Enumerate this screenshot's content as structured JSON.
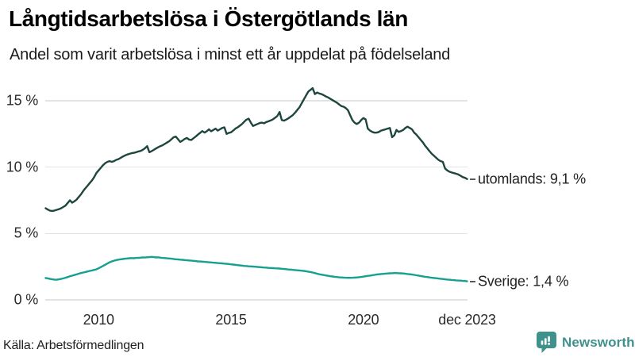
{
  "header": {
    "title": "Långtidsarbetslösa i Östergötlands län",
    "subtitle": "Andel som varit arbetslösa i minst ett år uppdelat på födelseland"
  },
  "footer": {
    "source": "Källa: Arbetsförmedlingen",
    "brand_name": "Newsworthy",
    "brand_color": "#3f918b"
  },
  "chart_data": {
    "type": "line",
    "x_unit": "month",
    "grid": "horizontal-only",
    "gridline_color": "#e2e4e3",
    "ylim": [
      0,
      16.3
    ],
    "y_ticks": [
      {
        "label": "0 %",
        "value": 0
      },
      {
        "label": "5 %",
        "value": 5
      },
      {
        "label": "10 %",
        "value": 10
      },
      {
        "label": "15 %",
        "value": 15
      }
    ],
    "x_ticks": [
      {
        "label": "2010",
        "month_index": 24
      },
      {
        "label": "2015",
        "month_index": 84
      },
      {
        "label": "2020",
        "month_index": 144
      },
      {
        "label": "dec 2023",
        "month_index": 191
      }
    ],
    "legend_position": "labels-at-line-end",
    "series": [
      {
        "name": "utomlands",
        "end_label": "utomlands: 9,1 %",
        "end_value_display": "9,1 %",
        "color": "#1e463e",
        "values": [
          6.9,
          6.8,
          6.72,
          6.7,
          6.73,
          6.78,
          6.83,
          6.9,
          7.0,
          7.1,
          7.3,
          7.5,
          7.32,
          7.42,
          7.55,
          7.75,
          7.95,
          8.2,
          8.4,
          8.6,
          8.8,
          9.0,
          9.25,
          9.55,
          9.75,
          9.95,
          10.15,
          10.3,
          10.4,
          10.45,
          10.4,
          10.45,
          10.55,
          10.6,
          10.7,
          10.8,
          10.88,
          10.95,
          11.0,
          11.05,
          11.08,
          11.12,
          11.18,
          11.22,
          11.3,
          11.42,
          11.58,
          11.12,
          11.2,
          11.3,
          11.4,
          11.5,
          11.58,
          11.65,
          11.75,
          11.85,
          11.95,
          12.1,
          12.25,
          12.3,
          12.1,
          11.9,
          12.0,
          12.12,
          12.2,
          12.08,
          12.05,
          12.18,
          12.3,
          12.45,
          12.58,
          12.72,
          12.6,
          12.7,
          12.85,
          12.7,
          12.8,
          12.9,
          12.75,
          12.85,
          12.95,
          13.0,
          12.5,
          12.58,
          12.62,
          12.75,
          12.9,
          13.0,
          13.12,
          13.25,
          13.42,
          13.58,
          13.65,
          13.35,
          13.1,
          13.18,
          13.25,
          13.32,
          13.35,
          13.3,
          13.4,
          13.45,
          13.52,
          13.6,
          13.72,
          13.85,
          14.15,
          13.55,
          13.5,
          13.58,
          13.68,
          13.8,
          13.92,
          14.1,
          14.3,
          14.5,
          14.8,
          15.1,
          15.4,
          15.68,
          15.82,
          15.95,
          15.5,
          15.62,
          15.55,
          15.5,
          15.42,
          15.32,
          15.25,
          15.15,
          15.05,
          14.95,
          14.85,
          14.72,
          14.6,
          14.55,
          14.45,
          14.28,
          13.9,
          13.55,
          13.35,
          13.25,
          13.35,
          13.55,
          13.7,
          13.6,
          12.9,
          12.75,
          12.65,
          12.6,
          12.6,
          12.65,
          12.75,
          12.8,
          12.85,
          12.9,
          12.95,
          12.25,
          12.4,
          12.8,
          12.65,
          12.72,
          12.8,
          12.95,
          13.05,
          12.95,
          12.85,
          12.6,
          12.45,
          12.25,
          12.05,
          11.85,
          11.6,
          11.4,
          11.2,
          11.0,
          10.85,
          10.7,
          10.55,
          10.45,
          10.4,
          9.9,
          9.75,
          9.65,
          9.6,
          9.55,
          9.5,
          9.45,
          9.35,
          9.25,
          9.2,
          9.1
        ]
      },
      {
        "name": "Sverige",
        "end_label": "Sverige: 1,4 %",
        "end_value_display": "1,4 %",
        "color": "#16a08f",
        "values": [
          1.65,
          1.62,
          1.58,
          1.55,
          1.53,
          1.52,
          1.55,
          1.58,
          1.62,
          1.67,
          1.72,
          1.78,
          1.82,
          1.87,
          1.92,
          1.97,
          2.02,
          2.06,
          2.1,
          2.14,
          2.18,
          2.22,
          2.26,
          2.3,
          2.38,
          2.47,
          2.56,
          2.65,
          2.74,
          2.83,
          2.9,
          2.95,
          3.0,
          3.03,
          3.06,
          3.08,
          3.1,
          3.12,
          3.14,
          3.15,
          3.14,
          3.16,
          3.17,
          3.18,
          3.2,
          3.19,
          3.21,
          3.22,
          3.24,
          3.22,
          3.2,
          3.21,
          3.18,
          3.16,
          3.15,
          3.13,
          3.12,
          3.1,
          3.08,
          3.06,
          3.05,
          3.03,
          3.02,
          3.0,
          2.98,
          2.97,
          2.95,
          2.94,
          2.92,
          2.9,
          2.89,
          2.88,
          2.86,
          2.85,
          2.83,
          2.82,
          2.8,
          2.79,
          2.77,
          2.76,
          2.75,
          2.73,
          2.72,
          2.7,
          2.68,
          2.66,
          2.64,
          2.62,
          2.6,
          2.58,
          2.56,
          2.55,
          2.53,
          2.52,
          2.51,
          2.5,
          2.48,
          2.47,
          2.45,
          2.44,
          2.43,
          2.41,
          2.4,
          2.39,
          2.38,
          2.37,
          2.36,
          2.34,
          2.33,
          2.31,
          2.29,
          2.28,
          2.26,
          2.25,
          2.23,
          2.22,
          2.2,
          2.18,
          2.16,
          2.13,
          2.1,
          2.06,
          2.02,
          1.97,
          1.93,
          1.9,
          1.87,
          1.84,
          1.81,
          1.78,
          1.76,
          1.74,
          1.72,
          1.7,
          1.69,
          1.68,
          1.67,
          1.66,
          1.66,
          1.67,
          1.68,
          1.69,
          1.71,
          1.73,
          1.75,
          1.78,
          1.81,
          1.83,
          1.86,
          1.88,
          1.91,
          1.93,
          1.95,
          1.96,
          1.98,
          1.99,
          2.0,
          2.01,
          2.02,
          2.02,
          2.01,
          2.0,
          1.99,
          1.97,
          1.95,
          1.93,
          1.91,
          1.88,
          1.85,
          1.83,
          1.8,
          1.77,
          1.74,
          1.72,
          1.69,
          1.67,
          1.65,
          1.63,
          1.61,
          1.59,
          1.57,
          1.55,
          1.53,
          1.52,
          1.5,
          1.49,
          1.47,
          1.46,
          1.45,
          1.43,
          1.42,
          1.4
        ]
      }
    ]
  }
}
